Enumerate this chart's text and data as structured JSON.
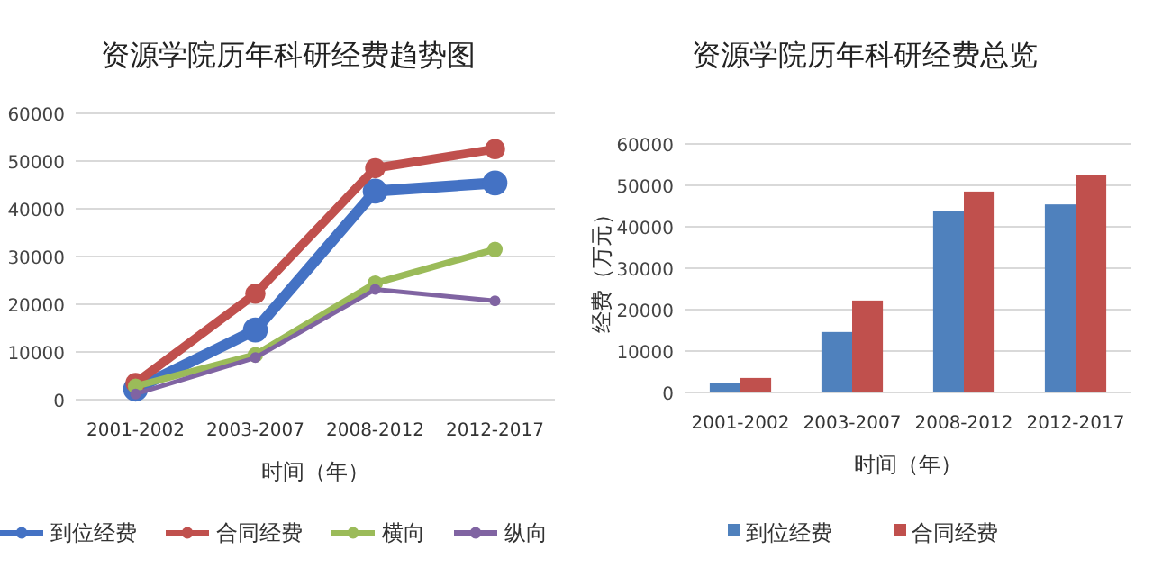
{
  "chart_data": [
    {
      "type": "line",
      "title": "资源学院历年科研经费趋势图",
      "xlabel": "时间（年）",
      "categories": [
        "2001-2002",
        "2003-2007",
        "2008-2012",
        "2012-2017"
      ],
      "ylim": [
        0,
        60000
      ],
      "yticks": [
        0,
        10000,
        20000,
        30000,
        40000,
        50000,
        60000
      ],
      "grid": "y",
      "legend": "bottom",
      "marker": "circle",
      "line_style": "solid",
      "series": [
        {
          "name": "到位经费",
          "color": "#4472c4",
          "values": [
            2200,
            14600,
            43700,
            45400
          ]
        },
        {
          "name": "合同经费",
          "color": "#c0504d",
          "values": [
            3500,
            22200,
            48500,
            52500
          ]
        },
        {
          "name": "横向",
          "color": "#9bbb59",
          "values": [
            2800,
            9400,
            24400,
            31500
          ]
        },
        {
          "name": "纵向",
          "color": "#8064a2",
          "values": [
            1200,
            8800,
            23100,
            20700
          ]
        }
      ]
    },
    {
      "type": "bar",
      "title": "资源学院历年科研经费总览",
      "xlabel": "时间（年）",
      "ylabel": "经费（万元）",
      "categories": [
        "2001-2002",
        "2003-2007",
        "2008-2012",
        "2012-2017"
      ],
      "ylim": [
        0,
        60000
      ],
      "yticks": [
        0,
        10000,
        20000,
        30000,
        40000,
        50000,
        60000
      ],
      "grid": "y",
      "legend": "bottom",
      "series": [
        {
          "name": "到位经费",
          "color": "#4f81bd",
          "values": [
            2200,
            14600,
            43700,
            45400
          ]
        },
        {
          "name": "合同经费",
          "color": "#c0504d",
          "values": [
            3500,
            22200,
            48500,
            52500
          ]
        }
      ]
    }
  ]
}
